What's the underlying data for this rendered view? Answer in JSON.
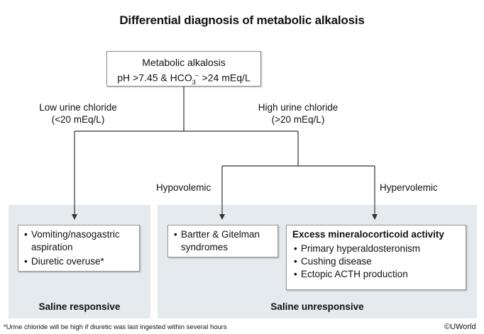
{
  "title": "Differential diagnosis of metabolic alkalosis",
  "root": {
    "line1": "Metabolic alkalosis",
    "line2_prefix": "pH >7.45 & HCO",
    "line2_sub": "3",
    "line2_sup": "–",
    "line2_suffix": " >24 mEq/L"
  },
  "low_chloride": {
    "line1": "Low urine chloride",
    "line2": "(<20 mEq/L)"
  },
  "high_chloride": {
    "line1": "High urine chloride",
    "line2": "(>20 mEq/L)"
  },
  "hypovolemic_label": "Hypovolemic",
  "hypervolemic_label": "Hypervolemic",
  "saline_responsive": {
    "title": "Saline responsive",
    "items": [
      "Vomiting/nasogastric aspiration",
      "Diuretic overuse*"
    ]
  },
  "saline_unresponsive": {
    "title": "Saline unresponsive",
    "hypovolemic_items": [
      "Bartter & Gitelman syndromes"
    ],
    "mineralocorticoid": {
      "heading": "Excess mineralocorticoid activity",
      "items": [
        "Primary hyperaldosteronism",
        "Cushing disease",
        "Ectopic ACTH production"
      ]
    }
  },
  "footnote": "*Urine chloride will be high if diuretic was last ingested within several hours",
  "credit": "©UWorld"
}
